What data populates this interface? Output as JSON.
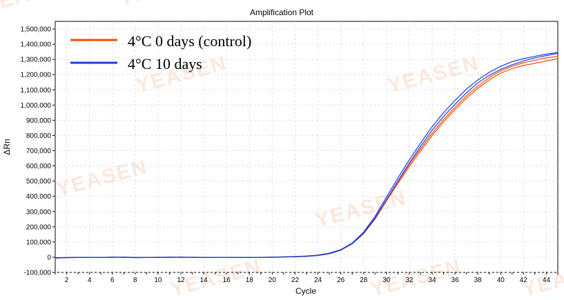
{
  "chart_data": {
    "type": "line",
    "title": "Amplification Plot",
    "xlabel": "Cycle",
    "ylabel": "ΔRn",
    "xlim": [
      1,
      45
    ],
    "ylim": [
      -100000,
      1550000
    ],
    "x_ticks": [
      2,
      4,
      6,
      8,
      10,
      12,
      14,
      16,
      18,
      20,
      22,
      24,
      26,
      28,
      30,
      32,
      34,
      36,
      38,
      40,
      42,
      44
    ],
    "y_ticks": [
      -100000,
      0,
      100000,
      200000,
      300000,
      400000,
      500000,
      600000,
      700000,
      800000,
      900000,
      1000000,
      1100000,
      1200000,
      1300000,
      1400000,
      1500000
    ],
    "y_tick_labels": [
      "-100,000",
      "0",
      "100,000",
      "200,000",
      "300,000",
      "400,000",
      "500,000",
      "600,000",
      "700,000",
      "800,000",
      "900,000",
      "1,000,000",
      "1,100,000",
      "1,200,000",
      "1,300,000",
      "1,400,000",
      "1,500,000"
    ],
    "grid": true,
    "legend_position": "top-left",
    "x": [
      1,
      2,
      3,
      4,
      5,
      6,
      7,
      8,
      9,
      10,
      11,
      12,
      13,
      14,
      15,
      16,
      17,
      18,
      19,
      20,
      21,
      22,
      23,
      24,
      25,
      26,
      27,
      28,
      29,
      30,
      31,
      32,
      33,
      34,
      35,
      36,
      37,
      38,
      39,
      40,
      41,
      42,
      43,
      44,
      45
    ],
    "series": [
      {
        "name": "4°C 0 days (control)",
        "color": "#ff4500",
        "values": [
          -5000,
          -3000,
          -2000,
          -1000,
          -2000,
          0,
          -1000,
          -2000,
          -1000,
          0,
          -1000,
          0,
          -1000,
          -2000,
          -1000,
          -1000,
          -1000,
          -1000,
          -1000,
          0,
          2000,
          4000,
          6000,
          12000,
          25000,
          48000,
          90000,
          155000,
          250000,
          370000,
          485000,
          595000,
          700000,
          800000,
          890000,
          970000,
          1045000,
          1110000,
          1165000,
          1210000,
          1240000,
          1260000,
          1275000,
          1290000,
          1305000
        ]
      },
      {
        "name": "4°C 0 days (control)",
        "color": "#ff4500",
        "values": [
          -4000,
          -2000,
          -2000,
          -1000,
          -1000,
          -1000,
          0,
          -1000,
          -2000,
          -1000,
          0,
          -1000,
          0,
          -1000,
          -1000,
          -2000,
          -1000,
          -1000,
          -1000,
          0,
          3000,
          5000,
          8000,
          14000,
          27000,
          50000,
          92000,
          160000,
          258000,
          378000,
          495000,
          610000,
          715000,
          815000,
          905000,
          985000,
          1060000,
          1125000,
          1180000,
          1225000,
          1255000,
          1278000,
          1295000,
          1310000,
          1320000
        ]
      },
      {
        "name": "4°C 10 days",
        "color": "#1a3adc",
        "values": [
          -6000,
          -3000,
          -2000,
          -1000,
          -1000,
          0,
          -1000,
          -3000,
          -2000,
          -1000,
          0,
          0,
          -1000,
          -1000,
          -1000,
          -1000,
          -2000,
          -1000,
          -1000,
          -1000,
          1000,
          3000,
          6000,
          11000,
          23000,
          46000,
          88000,
          155000,
          255000,
          378000,
          500000,
          618000,
          730000,
          835000,
          925000,
          1005000,
          1080000,
          1145000,
          1195000,
          1235000,
          1265000,
          1290000,
          1310000,
          1325000,
          1340000
        ]
      },
      {
        "name": "4°C 10 days",
        "color": "#1a3adc",
        "values": [
          -3000,
          -2000,
          -1000,
          -1000,
          -2000,
          0,
          0,
          -1000,
          -1000,
          -2000,
          -1000,
          0,
          -1000,
          -2000,
          -1000,
          -1000,
          -1000,
          -2000,
          -1000,
          0,
          2000,
          4000,
          7000,
          13000,
          26000,
          49000,
          93000,
          165000,
          268000,
          395000,
          520000,
          640000,
          752000,
          858000,
          950000,
          1030000,
          1105000,
          1165000,
          1215000,
          1255000,
          1285000,
          1305000,
          1320000,
          1335000,
          1345000
        ]
      }
    ],
    "legend": [
      {
        "label": "4°C 0 days (control)",
        "color": "#ff4500"
      },
      {
        "label": "4°C 10 days",
        "color": "#1a3adc"
      }
    ],
    "watermark_text": "YEASEN"
  }
}
